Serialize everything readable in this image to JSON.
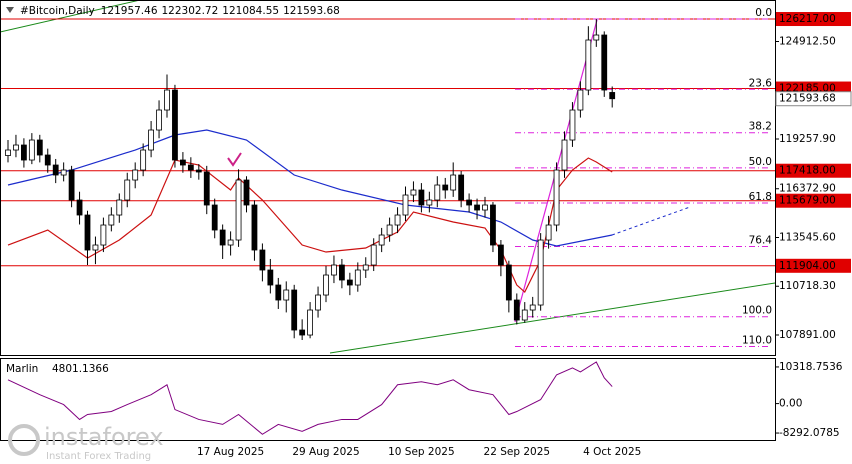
{
  "chart_data": [
    {
      "type": "candlestick",
      "title": "#Bitcoin,Daily",
      "categories": [
        null,
        null,
        null,
        null,
        null,
        null,
        null,
        null,
        null,
        null,
        null,
        null,
        null,
        null,
        null,
        null,
        null,
        null,
        null,
        null,
        null,
        null,
        null,
        null,
        null,
        null,
        null,
        null,
        "17 Aug 2025",
        null,
        null,
        null,
        null,
        null,
        null,
        null,
        null,
        null,
        null,
        null,
        "29 Aug 2025",
        null,
        null,
        null,
        null,
        null,
        null,
        null,
        null,
        null,
        null,
        null,
        "10 Sep 2025",
        null,
        null,
        null,
        null,
        null,
        null,
        null,
        null,
        null,
        null,
        null,
        "22 Sep 2025",
        null,
        null,
        null,
        null,
        null,
        null,
        null,
        null,
        null,
        null,
        null,
        "4 Oct 2025"
      ],
      "open": [
        118300,
        118619,
        118909,
        118039,
        119199,
        118329,
        117749,
        117169,
        117459,
        115719,
        114849,
        112819,
        113109,
        114269,
        114849,
        115719,
        116879,
        117459,
        118619,
        119779,
        120939,
        122099,
        118039,
        117749,
        117459,
        117343,
        115429,
        113979,
        113109,
        113399,
        116879,
        115429,
        112819,
        111659,
        110789,
        109919,
        110499,
        108179,
        107889,
        109339,
        110209,
        111369,
        111949,
        111079,
        110789,
        111659,
        111949,
        113109,
        113689,
        114269,
        114849,
        116009,
        116299,
        115429,
        115719,
        116589,
        116299,
        117169,
        115719,
        115429,
        115139,
        115429,
        113109,
        111949,
        109919,
        108759,
        109339,
        109629,
        113399,
        114269,
        117459,
        119199,
        120939,
        122099,
        124999,
        125289,
        121957.46
      ],
      "high": [
        119200,
        119500,
        119300,
        119600,
        119500,
        118700,
        118100,
        117900,
        117700,
        116200,
        115100,
        113600,
        114700,
        115300,
        116100,
        117300,
        117900,
        119000,
        120300,
        121500,
        123000,
        122400,
        118500,
        118200,
        117800,
        117700,
        115800,
        114300,
        113900,
        117500,
        117100,
        115700,
        113200,
        112300,
        111200,
        111000,
        110800,
        108800,
        109800,
        110700,
        111900,
        112500,
        112300,
        111500,
        112100,
        112400,
        113500,
        114100,
        114700,
        115300,
        116500,
        116800,
        116700,
        116200,
        117100,
        117000,
        117900,
        117400,
        116100,
        115800,
        115900,
        115600,
        113400,
        112200,
        110300,
        109800,
        110100,
        113800,
        114800,
        117900,
        119700,
        121400,
        122600,
        125800,
        126217,
        125500,
        122302.72
      ],
      "low": [
        117900,
        118200,
        117600,
        117800,
        117900,
        117300,
        116700,
        116800,
        115300,
        114300,
        111949,
        112000,
        112700,
        113900,
        114400,
        115300,
        116400,
        117100,
        118200,
        119300,
        120500,
        117600,
        117300,
        117000,
        116900,
        114900,
        113500,
        112300,
        112500,
        113000,
        115000,
        112200,
        111000,
        110300,
        109400,
        109200,
        107700,
        107600,
        107700,
        108900,
        109800,
        110900,
        110600,
        110200,
        110400,
        111200,
        111600,
        112700,
        113300,
        113800,
        114500,
        115600,
        115000,
        115000,
        115300,
        115800,
        115900,
        115300,
        115000,
        114600,
        114700,
        112700,
        111300,
        109200,
        108500,
        108600,
        108900,
        109300,
        112900,
        113900,
        117000,
        118800,
        120500,
        121800,
        124600,
        121700,
        121084.55
      ],
      "close": [
        118619,
        118909,
        118039,
        119199,
        118329,
        117749,
        117169,
        117459,
        115719,
        114849,
        112819,
        113109,
        114269,
        114849,
        115719,
        116879,
        117459,
        118619,
        119779,
        120939,
        122099,
        118039,
        117749,
        117459,
        117343,
        115429,
        113979,
        113109,
        113399,
        116879,
        115429,
        112819,
        111659,
        110789,
        109919,
        110499,
        108179,
        107889,
        109339,
        110209,
        111369,
        111949,
        111079,
        110789,
        111659,
        111949,
        113109,
        113689,
        114269,
        114849,
        116009,
        116299,
        115429,
        115719,
        116589,
        116299,
        117169,
        115719,
        115429,
        115139,
        115429,
        113109,
        111949,
        109919,
        108759,
        109339,
        109629,
        113399,
        114269,
        117459,
        119199,
        120939,
        122099,
        124999,
        125289,
        122099,
        121593.68
      ],
      "ylim": [
        106730,
        127320
      ],
      "yticks": [
        {
          "value": 124912.5,
          "label": "124912.50"
        },
        {
          "value": 119257.9,
          "label": "119257.90"
        },
        {
          "value": 116372.9,
          "label": "116372.90"
        },
        {
          "value": 113545.6,
          "label": "113545.60"
        },
        {
          "value": 110718.3,
          "label": "110718.30"
        },
        {
          "value": 107891,
          "label": "107891.00"
        }
      ],
      "levels": [
        {
          "value": 126217,
          "label": "126217.00"
        },
        {
          "value": 122185,
          "label": "122185.00"
        },
        {
          "value": 117418,
          "label": "117418.00"
        },
        {
          "value": 115679,
          "label": "115679.00"
        },
        {
          "value": 111904,
          "label": "111904.00"
        }
      ],
      "level_color": "#e00000",
      "fibonacci": {
        "from": 126217,
        "to": 108950,
        "color": "#dd22dd",
        "levels": [
          {
            "value": 0,
            "label": "0.0"
          },
          23.6,
          38.2,
          {
            "value": 50,
            "label": "50.0"
          },
          61.8,
          76.4,
          {
            "value": 100,
            "label": "100.0"
          },
          {
            "value": 110,
            "label": "110.0"
          }
        ]
      },
      "lines": [
        {
          "color": "#1c2ccc",
          "x": [
            0,
            8,
            16,
            21,
            25,
            30,
            36,
            42,
            50,
            58,
            62,
            66,
            69,
            76
          ],
          "values": [
            116589,
            117459,
            118619,
            119489,
            119779,
            119199,
            117169,
            116299,
            115429,
            115023,
            114443,
            113399,
            113051,
            113689
          ]
        },
        {
          "color": "#cc1111",
          "x": [
            0,
            5,
            10,
            14,
            18,
            21,
            24,
            28,
            29,
            32,
            37,
            40,
            45,
            49,
            51,
            56,
            60,
            62,
            64,
            65,
            67,
            69,
            71,
            73,
            74,
            76
          ],
          "values": [
            113109,
            113979,
            112355,
            113399,
            114849,
            118039,
            117749,
            116299,
            116995,
            115719,
            113109,
            112703,
            112935,
            113863,
            115023,
            114443,
            114095,
            112819,
            110789,
            110383,
            112239,
            116299,
            117459,
            118155,
            117923,
            117343
          ]
        }
      ]
    },
    {
      "type": "line",
      "name": "Marlin",
      "color": "#800080",
      "x": [
        0,
        4,
        7,
        9,
        10,
        13,
        15,
        18,
        20,
        21,
        24,
        27,
        29,
        32,
        34,
        37,
        39,
        42,
        44,
        47,
        49,
        52,
        54,
        56,
        58,
        61,
        63,
        64,
        67,
        69,
        71,
        72,
        74,
        75,
        76
      ],
      "values": [
        6696,
        2511,
        -279,
        -4464,
        -3069,
        -2232,
        -279,
        2511,
        5301,
        -1674,
        -4464,
        -5859,
        -3069,
        -8649,
        -5859,
        -7812,
        -5859,
        -4464,
        -4464,
        -279,
        5301,
        6138,
        5301,
        6696,
        3906,
        2511,
        -3069,
        -2232,
        1116,
        8091,
        10044,
        8928,
        11718,
        7254,
        4801.1366
      ],
      "ylim": [
        -10252,
        12838
      ],
      "yticks": [
        10318.7536,
        {
          "value": 0,
          "label": "0.00"
        },
        -8292.0785
      ]
    }
  ],
  "watermark": {
    "brand": "instaforex",
    "tagline": "Instant Forex Trading"
  }
}
